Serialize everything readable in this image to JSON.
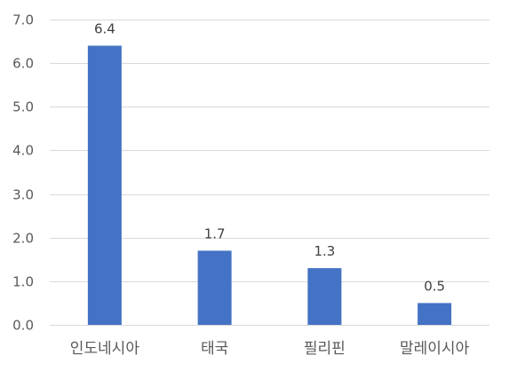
{
  "chart_data": {
    "type": "bar",
    "title": "",
    "xlabel": "",
    "ylabel": "",
    "categories": [
      "인도네시아",
      "태국",
      "필리핀",
      "말레이시아"
    ],
    "values": [
      6.4,
      1.7,
      1.3,
      0.5
    ],
    "data_labels": [
      "6.4",
      "1.7",
      "1.3",
      "0.5"
    ],
    "ylim": [
      0,
      7
    ],
    "yticks": [
      0,
      1,
      2,
      3,
      4,
      5,
      6,
      7
    ],
    "ytick_labels": [
      "0.0",
      "1.0",
      "2.0",
      "3.0",
      "4.0",
      "5.0",
      "6.0",
      "7.0"
    ],
    "grid": true,
    "legend": false,
    "bar_color": "#4472C4"
  }
}
